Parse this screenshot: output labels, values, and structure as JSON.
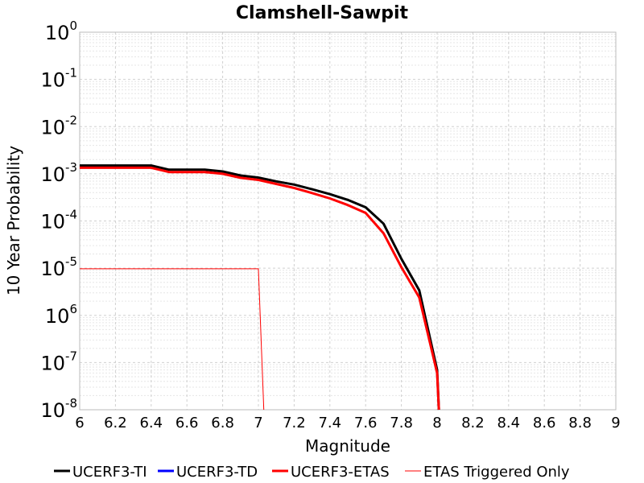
{
  "chart_data": {
    "type": "line",
    "title": "Clamshell-Sawpit",
    "xlabel": "Magnitude",
    "ylabel": "10 Year Probability",
    "xlim": [
      6,
      9
    ],
    "ylim": [
      1e-08,
      1
    ],
    "yscale": "log",
    "grid": true,
    "legend_position": "bottom",
    "x_ticks": [
      "6",
      "6.2",
      "6.4",
      "6.6",
      "6.8",
      "7",
      "7.2",
      "7.4",
      "7.6",
      "7.8",
      "8",
      "8.2",
      "8.4",
      "8.6",
      "8.8",
      "9"
    ],
    "y_ticks": [
      {
        "base": "10",
        "exp": "0"
      },
      {
        "base": "10",
        "exp": "-1"
      },
      {
        "base": "10",
        "exp": "-2"
      },
      {
        "base": "10",
        "exp": "-3"
      },
      {
        "base": "10",
        "exp": "-4"
      },
      {
        "base": "10",
        "exp": "-5"
      },
      {
        "base": "10",
        "exp": "6"
      },
      {
        "base": "10",
        "exp": "-7"
      },
      {
        "base": "10",
        "exp": "-8"
      }
    ],
    "series": [
      {
        "name": "UCERF3-TI",
        "color": "#000000",
        "width": 3,
        "x": [
          6.0,
          6.1,
          6.2,
          6.3,
          6.4,
          6.5,
          6.6,
          6.7,
          6.8,
          6.9,
          7.0,
          7.1,
          7.2,
          7.3,
          7.4,
          7.5,
          7.6,
          7.7,
          7.8,
          7.9,
          8.0,
          8.01
        ],
        "y": [
          0.0015,
          0.0015,
          0.0015,
          0.0015,
          0.0015,
          0.00122,
          0.00122,
          0.00122,
          0.00112,
          0.00092,
          0.00083,
          0.00069,
          0.00059,
          0.00047,
          0.00037,
          0.00028,
          0.000195,
          8.8e-05,
          1.58e-05,
          3.4e-06,
          7e-08,
          1e-08
        ]
      },
      {
        "name": "UCERF3-TD",
        "color": "#0000ff",
        "width": 3,
        "x": [],
        "y": []
      },
      {
        "name": "UCERF3-ETAS",
        "color": "#ff0000",
        "width": 3,
        "x": [
          6.0,
          6.1,
          6.2,
          6.3,
          6.4,
          6.5,
          6.6,
          6.7,
          6.8,
          6.9,
          7.0,
          7.1,
          7.2,
          7.3,
          7.4,
          7.5,
          7.6,
          7.7,
          7.8,
          7.9,
          8.0,
          8.01
        ],
        "y": [
          0.00134,
          0.00134,
          0.00134,
          0.00134,
          0.00134,
          0.00109,
          0.00109,
          0.00109,
          0.001,
          0.00082,
          0.00074,
          0.00061,
          0.0005,
          0.00039,
          0.0003,
          0.000218,
          0.000148,
          5.5e-05,
          1.05e-05,
          2.4e-06,
          6e-08,
          1e-08
        ]
      },
      {
        "name": "ETAS Triggered Only",
        "color": "#ff0000",
        "width": 1,
        "x": [
          6.0,
          7.0,
          7.03
        ],
        "y": [
          9.7e-06,
          9.7e-06,
          1e-08
        ]
      }
    ]
  }
}
